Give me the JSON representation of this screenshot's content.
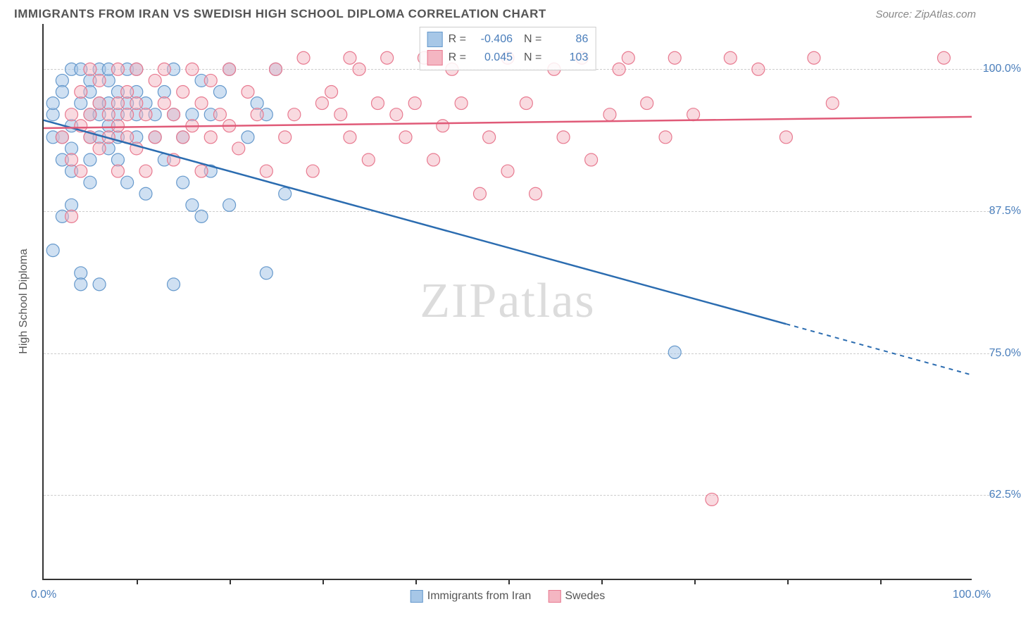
{
  "title": "IMMIGRANTS FROM IRAN VS SWEDISH HIGH SCHOOL DIPLOMA CORRELATION CHART",
  "source": "Source: ZipAtlas.com",
  "watermark_a": "ZIP",
  "watermark_b": "atlas",
  "yaxis_title": "High School Diploma",
  "xaxis": {
    "min": 0,
    "max": 100,
    "ticks_pct": [
      10,
      20,
      30,
      40,
      50,
      60,
      70,
      80,
      90
    ],
    "labels": {
      "left": "0.0%",
      "right": "100.0%"
    }
  },
  "yaxis": {
    "min": 55,
    "max": 104,
    "gridlines": [
      62.5,
      75.0,
      87.5,
      100.0
    ],
    "labels": [
      "62.5%",
      "75.0%",
      "87.5%",
      "100.0%"
    ],
    "label_color": "#4a7ebb"
  },
  "series": [
    {
      "id": "iran",
      "label": "Immigrants from Iran",
      "fill": "#a7c7e7",
      "stroke": "#6699cc",
      "line_fill": "#2b6cb0",
      "R": "-0.406",
      "N": "86",
      "trend": {
        "x0": 0,
        "y0": 95.5,
        "x1": 80,
        "y1": 77.5,
        "x2": 100,
        "y2": 73.0,
        "solid_until": 80
      },
      "marker_radius": 9,
      "marker_opacity": 0.55,
      "points": [
        [
          1,
          94
        ],
        [
          1,
          96
        ],
        [
          1,
          97
        ],
        [
          1,
          84
        ],
        [
          2,
          99
        ],
        [
          2,
          94
        ],
        [
          2,
          92
        ],
        [
          2,
          98
        ],
        [
          3,
          100
        ],
        [
          3,
          95
        ],
        [
          3,
          93
        ],
        [
          3,
          91
        ],
        [
          3,
          88
        ],
        [
          4,
          100
        ],
        [
          4,
          97
        ],
        [
          4,
          82
        ],
        [
          5,
          99
        ],
        [
          5,
          96
        ],
        [
          5,
          94
        ],
        [
          5,
          98
        ],
        [
          5,
          92
        ],
        [
          5,
          90
        ],
        [
          6,
          100
        ],
        [
          6,
          96
        ],
        [
          6,
          94
        ],
        [
          6,
          97
        ],
        [
          7,
          99
        ],
        [
          7,
          97
        ],
        [
          7,
          95
        ],
        [
          7,
          93
        ],
        [
          7,
          100
        ],
        [
          8,
          98
        ],
        [
          8,
          96
        ],
        [
          8,
          94
        ],
        [
          8,
          92
        ],
        [
          9,
          100
        ],
        [
          9,
          97
        ],
        [
          9,
          90
        ],
        [
          10,
          98
        ],
        [
          10,
          96
        ],
        [
          10,
          94
        ],
        [
          10,
          100
        ],
        [
          11,
          97
        ],
        [
          11,
          89
        ],
        [
          12,
          96
        ],
        [
          12,
          94
        ],
        [
          13,
          98
        ],
        [
          13,
          92
        ],
        [
          14,
          100
        ],
        [
          14,
          96
        ],
        [
          15,
          94
        ],
        [
          15,
          90
        ],
        [
          16,
          88
        ],
        [
          16,
          96
        ],
        [
          17,
          99
        ],
        [
          17,
          87
        ],
        [
          18,
          96
        ],
        [
          18,
          91
        ],
        [
          19,
          98
        ],
        [
          20,
          100
        ],
        [
          20,
          88
        ],
        [
          22,
          94
        ],
        [
          23,
          97
        ],
        [
          24,
          96
        ],
        [
          24,
          82
        ],
        [
          25,
          100
        ],
        [
          26,
          89
        ],
        [
          4,
          81
        ],
        [
          6,
          81
        ],
        [
          14,
          81
        ],
        [
          68,
          75
        ],
        [
          2,
          87
        ]
      ]
    },
    {
      "id": "swedes",
      "label": "Swedes",
      "fill": "#f4b6c2",
      "stroke": "#e87a90",
      "line_fill": "#e05a78",
      "R": "0.045",
      "N": "103",
      "trend": {
        "x0": 0,
        "y0": 94.8,
        "x1": 100,
        "y1": 95.8,
        "solid_until": 100
      },
      "marker_radius": 9,
      "marker_opacity": 0.5,
      "points": [
        [
          2,
          94
        ],
        [
          3,
          96
        ],
        [
          3,
          92
        ],
        [
          3,
          87
        ],
        [
          4,
          95
        ],
        [
          4,
          91
        ],
        [
          4,
          98
        ],
        [
          5,
          96
        ],
        [
          5,
          94
        ],
        [
          5,
          100
        ],
        [
          6,
          99
        ],
        [
          6,
          97
        ],
        [
          6,
          93
        ],
        [
          7,
          96
        ],
        [
          7,
          94
        ],
        [
          8,
          100
        ],
        [
          8,
          97
        ],
        [
          8,
          95
        ],
        [
          8,
          91
        ],
        [
          9,
          98
        ],
        [
          9,
          96
        ],
        [
          9,
          94
        ],
        [
          10,
          100
        ],
        [
          10,
          97
        ],
        [
          10,
          93
        ],
        [
          11,
          96
        ],
        [
          11,
          91
        ],
        [
          12,
          99
        ],
        [
          12,
          94
        ],
        [
          13,
          97
        ],
        [
          13,
          100
        ],
        [
          14,
          96
        ],
        [
          14,
          92
        ],
        [
          15,
          98
        ],
        [
          15,
          94
        ],
        [
          16,
          100
        ],
        [
          16,
          95
        ],
        [
          17,
          97
        ],
        [
          17,
          91
        ],
        [
          18,
          99
        ],
        [
          18,
          94
        ],
        [
          19,
          96
        ],
        [
          20,
          100
        ],
        [
          20,
          95
        ],
        [
          21,
          93
        ],
        [
          22,
          98
        ],
        [
          23,
          96
        ],
        [
          24,
          91
        ],
        [
          25,
          100
        ],
        [
          26,
          94
        ],
        [
          27,
          96
        ],
        [
          28,
          101
        ],
        [
          29,
          91
        ],
        [
          30,
          97
        ],
        [
          31,
          98
        ],
        [
          32,
          96
        ],
        [
          33,
          94
        ],
        [
          33,
          101
        ],
        [
          34,
          100
        ],
        [
          35,
          92
        ],
        [
          36,
          97
        ],
        [
          37,
          101
        ],
        [
          38,
          96
        ],
        [
          39,
          94
        ],
        [
          40,
          97
        ],
        [
          41,
          101
        ],
        [
          42,
          92
        ],
        [
          43,
          95
        ],
        [
          44,
          100
        ],
        [
          45,
          97
        ],
        [
          47,
          89
        ],
        [
          48,
          94
        ],
        [
          50,
          91
        ],
        [
          50,
          101
        ],
        [
          52,
          97
        ],
        [
          53,
          89
        ],
        [
          55,
          100
        ],
        [
          56,
          94
        ],
        [
          58,
          101
        ],
        [
          59,
          92
        ],
        [
          61,
          96
        ],
        [
          62,
          100
        ],
        [
          63,
          101
        ],
        [
          65,
          97
        ],
        [
          67,
          94
        ],
        [
          68,
          101
        ],
        [
          70,
          96
        ],
        [
          72,
          62
        ],
        [
          74,
          101
        ],
        [
          77,
          100
        ],
        [
          80,
          94
        ],
        [
          83,
          101
        ],
        [
          85,
          97
        ],
        [
          97,
          101
        ]
      ]
    }
  ],
  "colors": {
    "axis": "#333333",
    "grid": "#cccccc",
    "bg": "#ffffff",
    "text": "#555555"
  }
}
